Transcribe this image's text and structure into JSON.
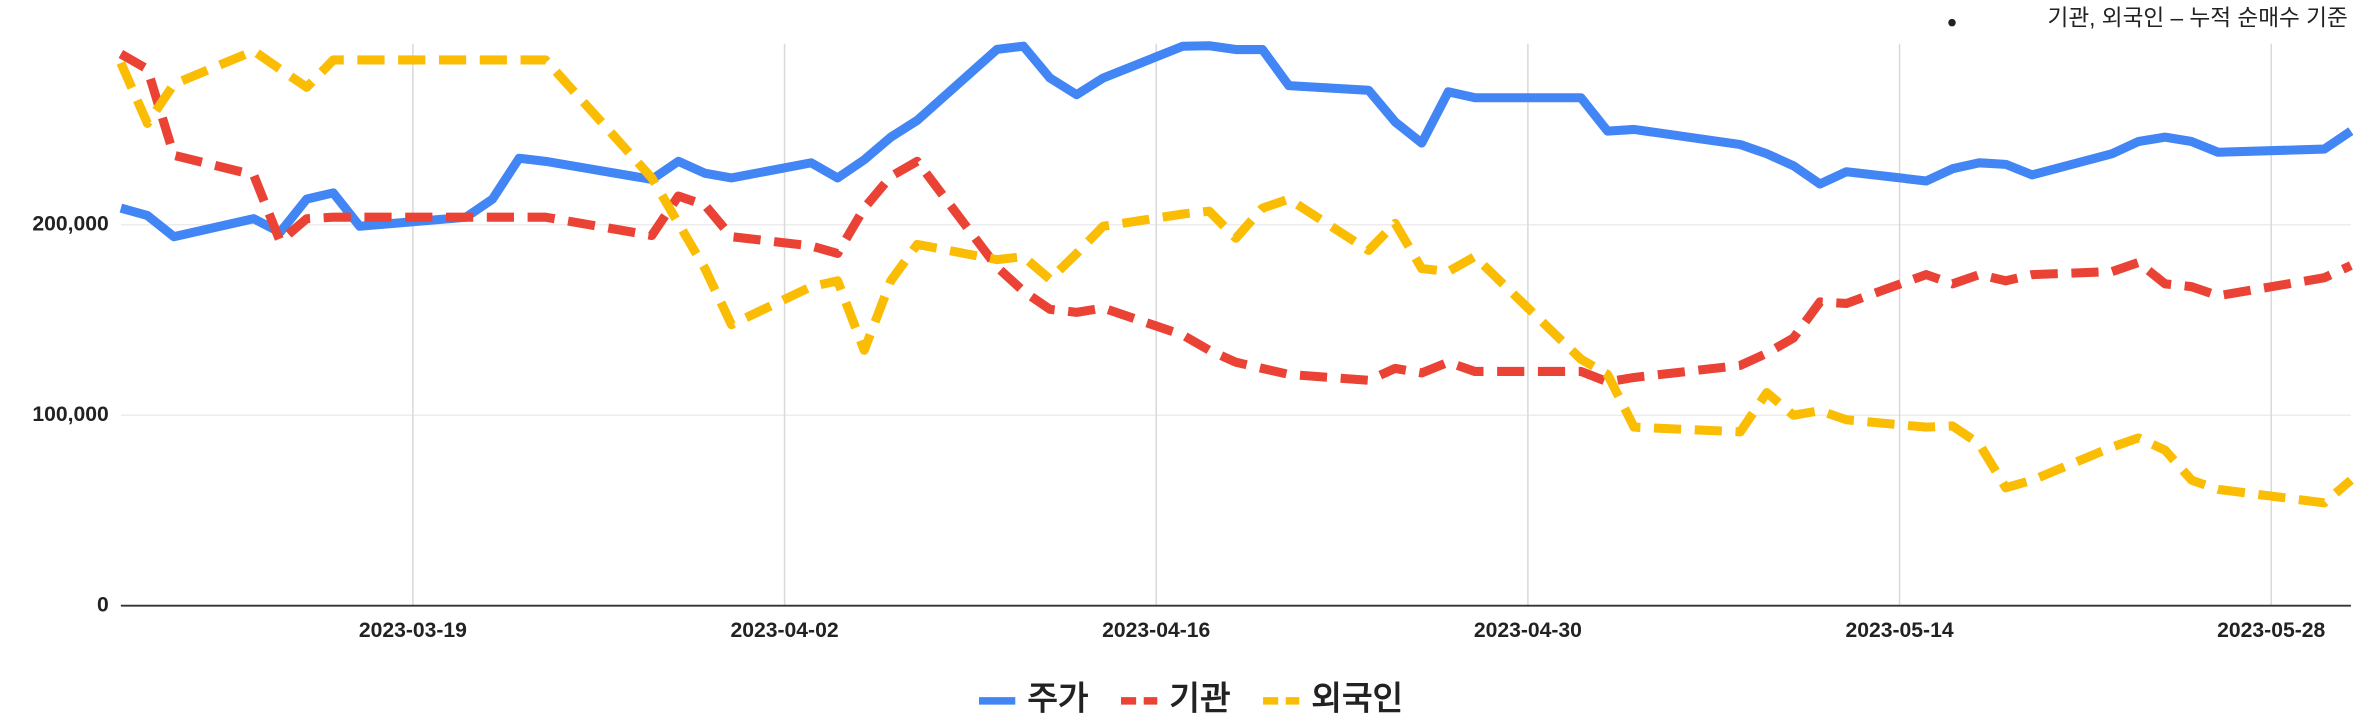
{
  "chart_data": {
    "type": "line",
    "annotation": "기관, 외국인 – 누적 순매수 기준",
    "x": [
      "2023-03-08",
      "2023-03-09",
      "2023-03-10",
      "2023-03-13",
      "2023-03-14",
      "2023-03-15",
      "2023-03-16",
      "2023-03-17",
      "2023-03-21",
      "2023-03-22",
      "2023-03-23",
      "2023-03-24",
      "2023-03-28",
      "2023-03-29",
      "2023-03-30",
      "2023-03-31",
      "2023-04-03",
      "2023-04-04",
      "2023-04-05",
      "2023-04-06",
      "2023-04-07",
      "2023-04-10",
      "2023-04-11",
      "2023-04-12",
      "2023-04-13",
      "2023-04-14",
      "2023-04-17",
      "2023-04-18",
      "2023-04-19",
      "2023-04-20",
      "2023-04-21",
      "2023-04-24",
      "2023-04-25",
      "2023-04-26",
      "2023-04-27",
      "2023-04-28",
      "2023-05-02",
      "2023-05-03",
      "2023-05-04",
      "2023-05-08",
      "2023-05-09",
      "2023-05-10",
      "2023-05-11",
      "2023-05-12",
      "2023-05-15",
      "2023-05-16",
      "2023-05-17",
      "2023-05-18",
      "2023-05-19",
      "2023-05-22",
      "2023-05-23",
      "2023-05-24",
      "2023-05-25",
      "2023-05-26",
      "2023-05-30",
      "2023-05-31"
    ],
    "series": [
      {
        "name": "주가",
        "color": "#4285f4",
        "dash": false,
        "values": [
          208700,
          204800,
          193700,
          203200,
          196000,
          213500,
          216700,
          199200,
          204000,
          213500,
          234900,
          233300,
          223800,
          233300,
          227000,
          224600,
          232500,
          224600,
          234100,
          246000,
          254800,
          292100,
          293700,
          277000,
          268300,
          277000,
          293700,
          294000,
          292000,
          292000,
          273000,
          270600,
          254000,
          242900,
          269800,
          266700,
          266700,
          249200,
          250000,
          242100,
          237300,
          231000,
          221400,
          227800,
          223000,
          229400,
          232500,
          231700,
          226200,
          237300,
          243700,
          246000,
          243700,
          238100,
          239700,
          249200
        ]
      },
      {
        "name": "기관",
        "color": "#ea4335",
        "dash": true,
        "values": [
          289700,
          281700,
          236500,
          226200,
          191300,
          203200,
          204000,
          204000,
          204000,
          204000,
          204000,
          204000,
          194400,
          215100,
          210300,
          193700,
          188900,
          184900,
          208700,
          225400,
          233300,
          177800,
          165100,
          155600,
          154000,
          156300,
          142100,
          134100,
          127800,
          124600,
          121400,
          118300,
          124600,
          122200,
          127800,
          123000,
          123000,
          117500,
          119800,
          126200,
          132500,
          140500,
          159500,
          158700,
          173800,
          169000,
          173800,
          170600,
          173800,
          175400,
          180200,
          169000,
          167500,
          162700,
          172200,
          178600
        ]
      },
      {
        "name": "외국인",
        "color": "#fbbc04",
        "dash": true,
        "values": [
          284900,
          253200,
          273800,
          291300,
          281700,
          272200,
          286500,
          286500,
          286500,
          286500,
          286500,
          286500,
          224600,
          200800,
          177000,
          147600,
          167500,
          170600,
          134100,
          170600,
          189700,
          181700,
          183300,
          171400,
          184900,
          199200,
          205600,
          207100,
          192900,
          208700,
          213500,
          186500,
          200800,
          177000,
          175400,
          183300,
          129400,
          121400,
          93700,
          91300,
          111900,
          100000,
          102400,
          97600,
          93700,
          94400,
          84900,
          61900,
          65900,
          83300,
          88100,
          81700,
          65900,
          61100,
          54000,
          65900
        ]
      }
    ],
    "xlim": [
      "2023-03-08",
      "2023-05-31"
    ],
    "xticks": [
      "2023-03-19",
      "2023-04-02",
      "2023-04-16",
      "2023-04-30",
      "2023-05-14",
      "2023-05-28"
    ],
    "ylim": [
      0,
      295000
    ],
    "yticks": [
      0,
      {
        "value": 100000,
        "label": "100,000"
      },
      {
        "value": 200000,
        "label": "200,000"
      }
    ],
    "grid": true,
    "legend": "bottom"
  }
}
